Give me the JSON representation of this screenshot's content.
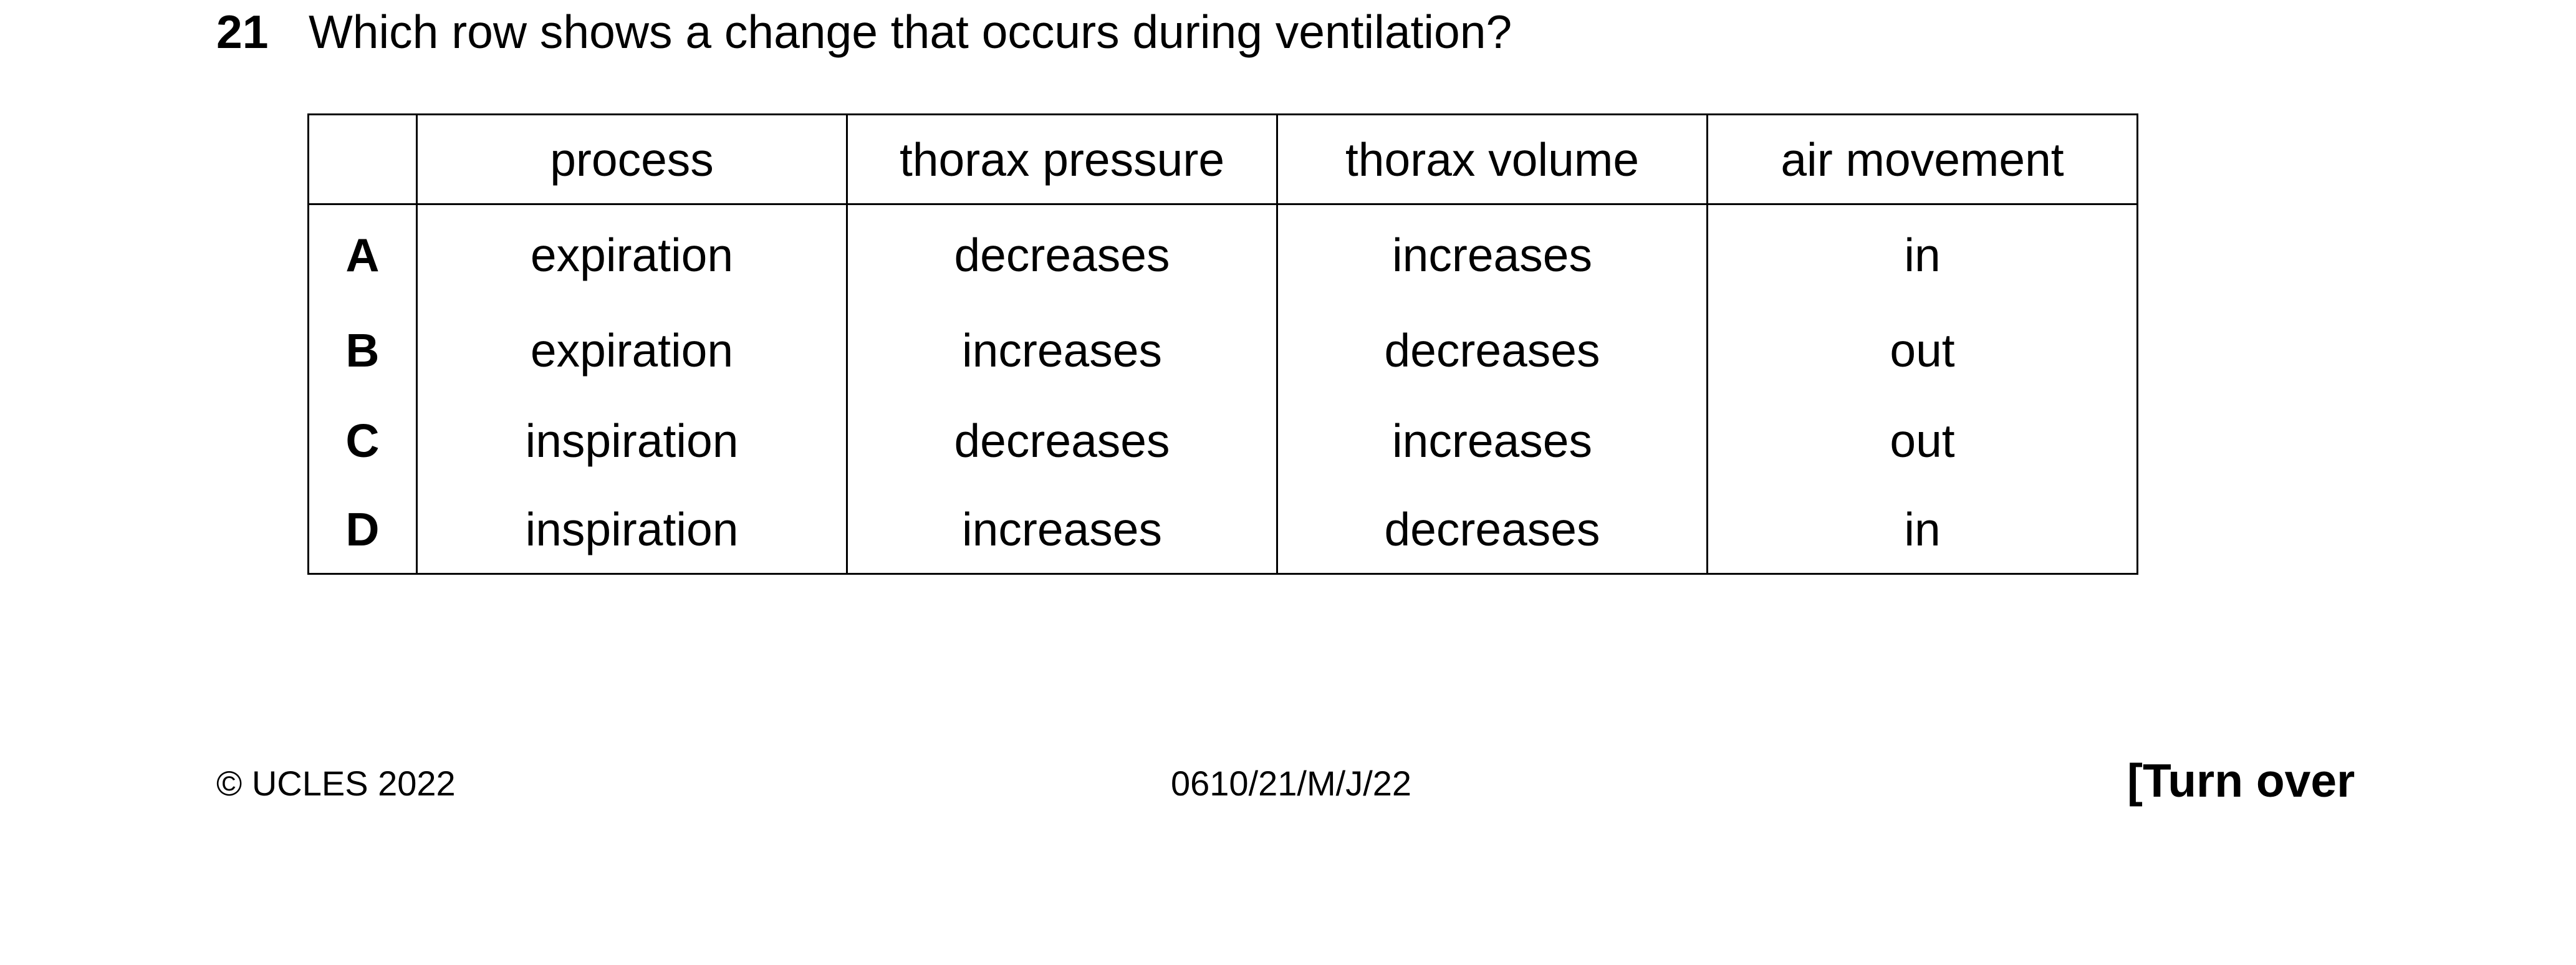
{
  "question": {
    "number": "21",
    "text": "Which row shows a change that occurs during ventilation?"
  },
  "table": {
    "headers": [
      "",
      "process",
      "thorax pressure",
      "thorax volume",
      "air movement"
    ],
    "rows": [
      {
        "letter": "A",
        "process": "expiration",
        "thorax_pressure": "decreases",
        "thorax_volume": "increases",
        "air_movement": "in"
      },
      {
        "letter": "B",
        "process": "expiration",
        "thorax_pressure": "increases",
        "thorax_volume": "decreases",
        "air_movement": "out"
      },
      {
        "letter": "C",
        "process": "inspiration",
        "thorax_pressure": "decreases",
        "thorax_volume": "increases",
        "air_movement": "out"
      },
      {
        "letter": "D",
        "process": "inspiration",
        "thorax_pressure": "increases",
        "thorax_volume": "decreases",
        "air_movement": "in"
      }
    ]
  },
  "footer": {
    "copyright": "© UCLES 2022",
    "code": "0610/21/M/J/22",
    "turn_over": "[Turn over"
  }
}
